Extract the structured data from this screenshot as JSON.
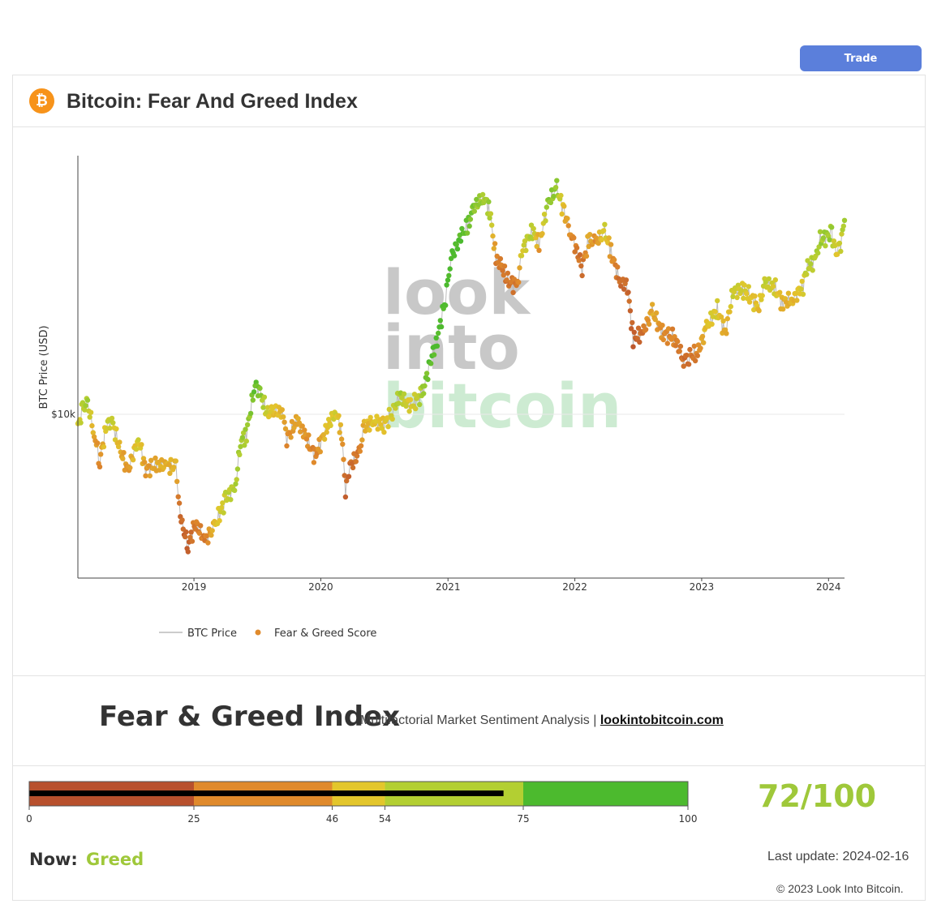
{
  "toolbar": {
    "trade_label": "Trade"
  },
  "header": {
    "title": "Bitcoin: Fear And Greed Index",
    "icon": "bitcoin-icon",
    "icon_glyph": "₿"
  },
  "watermark": {
    "line1": "look",
    "line2": "into",
    "line3": "bitcoin"
  },
  "chart_data": {
    "type": "scatter",
    "ylabel": "BTC Price (USD)",
    "y_scale": "log",
    "y_ticks": [
      {
        "value": 10000,
        "label": "$10k"
      }
    ],
    "x_ticks": [
      "2019",
      "2020",
      "2021",
      "2022",
      "2023",
      "2024"
    ],
    "x_range": [
      "2018-02-01",
      "2024-02-16"
    ],
    "y_range": [
      2500,
      90000
    ],
    "grid": true,
    "legend_position": "bottom-left",
    "legend": [
      {
        "label": "BTC Price",
        "kind": "line",
        "color": "#bbbbbb"
      },
      {
        "label": "Fear & Greed Score",
        "kind": "marker",
        "color": "#e08a2c"
      }
    ],
    "series": [
      {
        "name": "BTC Price",
        "points": [
          [
            "2018-02-01",
            9000,
            55
          ],
          [
            "2018-02-15",
            10500,
            65
          ],
          [
            "2018-03-01",
            11000,
            70
          ],
          [
            "2018-03-20",
            8500,
            35
          ],
          [
            "2018-04-05",
            6800,
            25
          ],
          [
            "2018-04-25",
            9200,
            60
          ],
          [
            "2018-05-10",
            9500,
            62
          ],
          [
            "2018-06-01",
            7500,
            40
          ],
          [
            "2018-06-25",
            6200,
            28
          ],
          [
            "2018-07-25",
            8200,
            58
          ],
          [
            "2018-08-15",
            6300,
            30
          ],
          [
            "2018-09-15",
            6500,
            38
          ],
          [
            "2018-10-15",
            6500,
            40
          ],
          [
            "2018-11-10",
            6400,
            42
          ],
          [
            "2018-11-20",
            4500,
            12
          ],
          [
            "2018-12-01",
            3800,
            10
          ],
          [
            "2018-12-15",
            3300,
            8
          ],
          [
            "2019-01-05",
            4000,
            22
          ],
          [
            "2019-02-01",
            3450,
            18
          ],
          [
            "2019-03-01",
            3850,
            45
          ],
          [
            "2019-04-02",
            4900,
            62
          ],
          [
            "2019-05-01",
            5500,
            68
          ],
          [
            "2019-05-15",
            8000,
            72
          ],
          [
            "2019-06-01",
            8500,
            70
          ],
          [
            "2019-06-26",
            13000,
            85
          ],
          [
            "2019-07-10",
            12000,
            78
          ],
          [
            "2019-08-01",
            10000,
            55
          ],
          [
            "2019-08-15",
            10300,
            48
          ],
          [
            "2019-09-15",
            10200,
            42
          ],
          [
            "2019-09-25",
            8200,
            25
          ],
          [
            "2019-10-25",
            9500,
            38
          ],
          [
            "2019-11-15",
            8500,
            30
          ],
          [
            "2019-12-15",
            7000,
            20
          ],
          [
            "2020-01-15",
            8800,
            45
          ],
          [
            "2020-02-13",
            10300,
            58
          ],
          [
            "2020-03-01",
            8700,
            35
          ],
          [
            "2020-03-12",
            5200,
            10
          ],
          [
            "2020-03-25",
            6500,
            12
          ],
          [
            "2020-04-20",
            7100,
            18
          ],
          [
            "2020-05-05",
            9000,
            40
          ],
          [
            "2020-06-01",
            9500,
            50
          ],
          [
            "2020-07-01",
            9200,
            48
          ],
          [
            "2020-07-25",
            10200,
            58
          ],
          [
            "2020-08-15",
            11800,
            72
          ],
          [
            "2020-09-15",
            10700,
            50
          ],
          [
            "2020-10-20",
            12000,
            72
          ],
          [
            "2020-11-10",
            15500,
            88
          ],
          [
            "2020-12-01",
            19000,
            90
          ],
          [
            "2020-12-25",
            27000,
            92
          ],
          [
            "2021-01-10",
            38000,
            93
          ],
          [
            "2021-02-10",
            46000,
            88
          ],
          [
            "2021-03-01",
            50000,
            82
          ],
          [
            "2021-03-15",
            58000,
            78
          ],
          [
            "2021-04-14",
            63500,
            70
          ],
          [
            "2021-05-01",
            57000,
            72
          ],
          [
            "2021-05-19",
            37000,
            20
          ],
          [
            "2021-06-01",
            36000,
            20
          ],
          [
            "2021-06-22",
            31000,
            15
          ],
          [
            "2021-07-20",
            30000,
            18
          ],
          [
            "2021-08-01",
            40000,
            55
          ],
          [
            "2021-09-01",
            48000,
            70
          ],
          [
            "2021-09-20",
            42000,
            30
          ],
          [
            "2021-10-15",
            60000,
            75
          ],
          [
            "2021-11-10",
            68000,
            76
          ],
          [
            "2021-12-01",
            56000,
            40
          ],
          [
            "2021-12-20",
            47000,
            25
          ],
          [
            "2022-01-22",
            35000,
            12
          ],
          [
            "2022-02-10",
            44000,
            40
          ],
          [
            "2022-03-01",
            43000,
            25
          ],
          [
            "2022-03-28",
            47000,
            60
          ],
          [
            "2022-04-15",
            40000,
            30
          ],
          [
            "2022-05-10",
            31000,
            12
          ],
          [
            "2022-06-01",
            30000,
            12
          ],
          [
            "2022-06-18",
            19000,
            6
          ],
          [
            "2022-07-15",
            20000,
            15
          ],
          [
            "2022-08-12",
            24000,
            40
          ],
          [
            "2022-09-10",
            20000,
            25
          ],
          [
            "2022-10-15",
            19200,
            22
          ],
          [
            "2022-11-10",
            16000,
            12
          ],
          [
            "2022-11-25",
            16500,
            14
          ],
          [
            "2022-12-20",
            16800,
            22
          ],
          [
            "2023-01-15",
            21000,
            50
          ],
          [
            "2023-02-15",
            24500,
            55
          ],
          [
            "2023-03-10",
            20000,
            35
          ],
          [
            "2023-04-01",
            28500,
            60
          ],
          [
            "2023-05-01",
            29000,
            55
          ],
          [
            "2023-06-15",
            25000,
            45
          ],
          [
            "2023-07-01",
            30500,
            62
          ],
          [
            "2023-08-01",
            29200,
            55
          ],
          [
            "2023-08-20",
            26000,
            40
          ],
          [
            "2023-09-20",
            26500,
            42
          ],
          [
            "2023-10-20",
            30000,
            55
          ],
          [
            "2023-10-30",
            34500,
            65
          ],
          [
            "2023-11-25",
            37500,
            68
          ],
          [
            "2023-12-08",
            44000,
            72
          ],
          [
            "2024-01-10",
            46500,
            72
          ],
          [
            "2024-01-23",
            39500,
            50
          ],
          [
            "2024-02-05",
            43000,
            60
          ],
          [
            "2024-02-16",
            52000,
            72
          ]
        ]
      }
    ]
  },
  "index_section": {
    "title": "Fear & Greed Index",
    "subtitle": "Multifactorial Market Sentiment Analysis | ",
    "link_text": "lookintobitcoin.com"
  },
  "gauge": {
    "min": 0,
    "max": 100,
    "value": 72,
    "ticks": [
      "0",
      "25",
      "46",
      "54",
      "75",
      "100"
    ],
    "bands": [
      {
        "from": 0,
        "to": 25,
        "color": "#b8502d"
      },
      {
        "from": 25,
        "to": 46,
        "color": "#e08a2c"
      },
      {
        "from": 46,
        "to": 54,
        "color": "#e3c62c"
      },
      {
        "from": 54,
        "to": 75,
        "color": "#b3cf32"
      },
      {
        "from": 75,
        "to": 100,
        "color": "#4cba2e"
      }
    ],
    "score_text": "72/100",
    "score_color": "#9fc83a"
  },
  "status": {
    "now_label": "Now:",
    "now_value": "Greed",
    "last_update": "Last update: 2024-02-16",
    "copyright": "© 2023 Look Into Bitcoin."
  }
}
